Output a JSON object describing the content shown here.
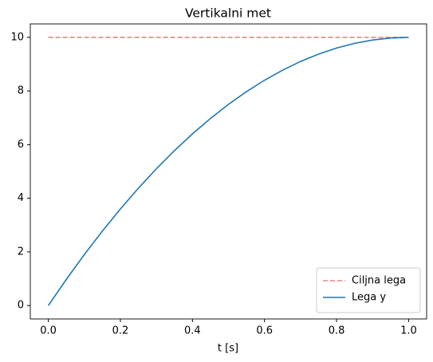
{
  "chart_data": {
    "type": "line",
    "title": "Vertikalni met",
    "xlabel": "t [s]",
    "series": [
      {
        "name": "Ciljna lega",
        "color": "#f08080",
        "linestyle": "dashed",
        "x": [
          0,
          1
        ],
        "values": [
          10,
          10
        ]
      },
      {
        "name": "Lega y",
        "color": "#1f77b4",
        "linestyle": "solid",
        "x": [
          0,
          0.05,
          0.1,
          0.15,
          0.2,
          0.25,
          0.3,
          0.35,
          0.4,
          0.45,
          0.5,
          0.55,
          0.6,
          0.65,
          0.7,
          0.75,
          0.8,
          0.85,
          0.9,
          0.95,
          1
        ],
        "values": [
          0,
          0.975,
          1.9,
          2.775,
          3.6,
          4.375,
          5.1,
          5.775,
          6.4,
          6.975,
          7.5,
          7.975,
          8.4,
          8.775,
          9.1,
          9.375,
          9.6,
          9.775,
          9.9,
          9.975,
          10
        ]
      }
    ],
    "xlim": [
      -0.05,
      1.05
    ],
    "ylim": [
      -0.5,
      10.5
    ],
    "xticks": [
      {
        "value": 0,
        "label": "0.0"
      },
      {
        "value": 0.2,
        "label": "0.2"
      },
      {
        "value": 0.4,
        "label": "0.4"
      },
      {
        "value": 0.6,
        "label": "0.6"
      },
      {
        "value": 0.8,
        "label": "0.8"
      },
      {
        "value": 1,
        "label": "1.0"
      }
    ],
    "yticks": [
      0,
      2,
      4,
      6,
      8,
      10
    ],
    "grid": false,
    "legend": "lower right"
  }
}
